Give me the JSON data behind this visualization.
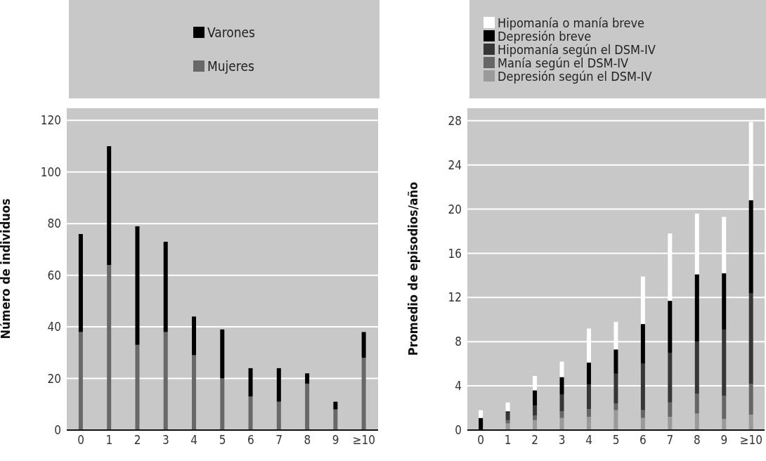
{
  "chart_data": [
    {
      "type": "bar",
      "stacked": true,
      "ylabel": "Número de individuos",
      "categories": [
        "0",
        "1",
        "2",
        "3",
        "4",
        "5",
        "6",
        "7",
        "8",
        "9",
        "≥10"
      ],
      "ylim": [
        0,
        125
      ],
      "yticks": [
        0,
        20,
        40,
        60,
        80,
        100,
        120
      ],
      "grid": "y",
      "legend": "top",
      "series": [
        {
          "name": "Mujeres",
          "color": "#686868",
          "values": [
            38,
            64,
            33,
            38,
            29,
            20,
            13,
            11,
            18,
            8,
            28
          ]
        },
        {
          "name": "Varones",
          "color": "#000000",
          "values": [
            38,
            46,
            46,
            35,
            15,
            19,
            11,
            13,
            4,
            3,
            10
          ]
        }
      ]
    },
    {
      "type": "bar",
      "stacked": true,
      "ylabel": "Promedio de episodios/año",
      "categories": [
        "0",
        "1",
        "2",
        "3",
        "4",
        "5",
        "6",
        "7",
        "8",
        "9",
        "≥10"
      ],
      "ylim": [
        0,
        29.2
      ],
      "yticks": [
        0,
        4,
        8,
        12,
        16,
        20,
        24,
        28
      ],
      "grid": "y",
      "legend": "top",
      "series": [
        {
          "name": "Depresión según el DSM-IV",
          "color": "#9a9a9a",
          "values": [
            0,
            0.6,
            0.9,
            1.1,
            1.2,
            1.8,
            1.1,
            1.2,
            1.5,
            1.0,
            1.4
          ]
        },
        {
          "name": "Manía según el DSM-IV",
          "color": "#666666",
          "values": [
            0,
            0.3,
            0.4,
            0.6,
            0.7,
            0.6,
            0.7,
            1.3,
            1.8,
            2.1,
            2.8
          ]
        },
        {
          "name": "Hipomanía según el DSM-IV",
          "color": "#363636",
          "values": [
            0,
            0.7,
            0.9,
            1.5,
            2.2,
            2.7,
            4.2,
            4.5,
            4.7,
            6.0,
            8.2
          ]
        },
        {
          "name": "Depresión breve",
          "color": "#000000",
          "values": [
            1.1,
            0.1,
            1.4,
            1.6,
            2.0,
            2.2,
            3.6,
            4.7,
            6.1,
            5.1,
            8.4
          ]
        },
        {
          "name": "Hipomanía o manía breve",
          "color": "#ffffff",
          "values": [
            0.7,
            0.8,
            1.3,
            1.4,
            3.1,
            2.5,
            4.3,
            6.1,
            5.5,
            5.1,
            7.1
          ]
        }
      ]
    }
  ]
}
